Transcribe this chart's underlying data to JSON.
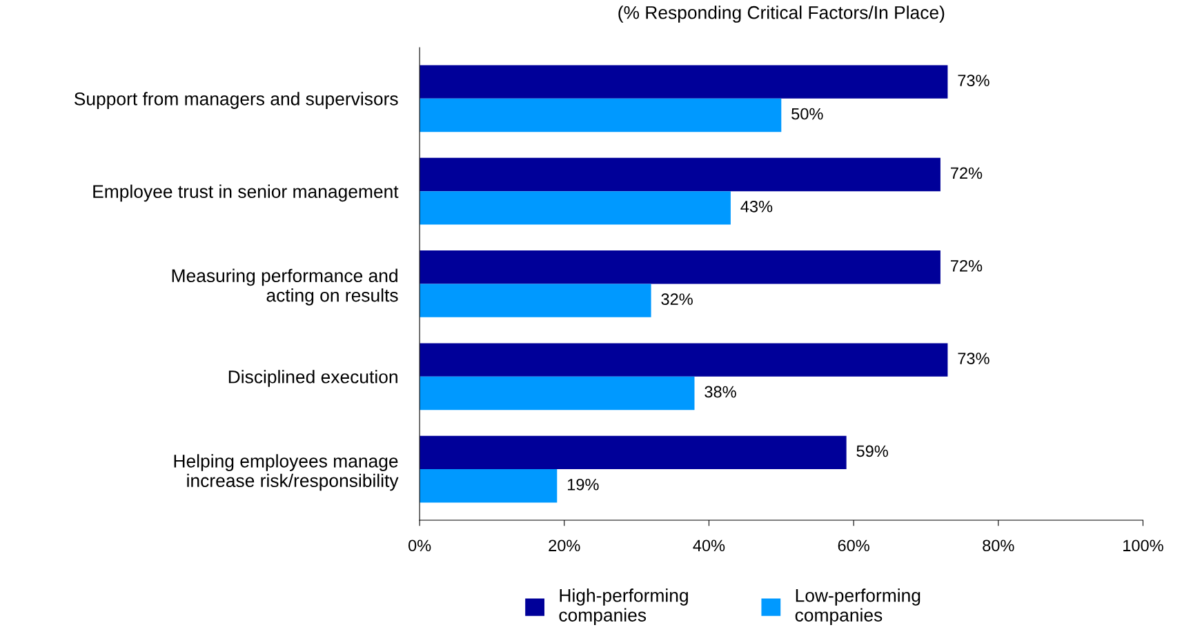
{
  "chart_data": {
    "type": "bar",
    "orientation": "horizontal",
    "title": "(% Responding Critical Factors/In Place)",
    "categories": [
      "Support from managers and supervisors",
      "Employee trust in senior management",
      "Measuring performance and\nacting on results",
      "Disciplined execution",
      "Helping employees manage\nincrease risk/responsibility"
    ],
    "series": [
      {
        "name": "High-performing\ncompanies",
        "color": "#000099",
        "values": [
          73,
          72,
          72,
          73,
          59
        ],
        "value_labels": [
          "73%",
          "72%",
          "72%",
          "73%",
          "59%"
        ]
      },
      {
        "name": "Low-performing\ncompanies",
        "color": "#0099ff",
        "values": [
          50,
          43,
          32,
          38,
          19
        ],
        "value_labels": [
          "50%",
          "43%",
          "32%",
          "38%",
          "19%"
        ]
      }
    ],
    "xlim": [
      0,
      100
    ],
    "xticks": [
      {
        "value": 0,
        "label": "0%"
      },
      {
        "value": 20,
        "label": "20%"
      },
      {
        "value": 40,
        "label": "40%"
      },
      {
        "value": 60,
        "label": "60%"
      },
      {
        "value": 80,
        "label": "80%"
      },
      {
        "value": 100,
        "label": "100%"
      }
    ],
    "grid": false,
    "legend": "bottom"
  }
}
